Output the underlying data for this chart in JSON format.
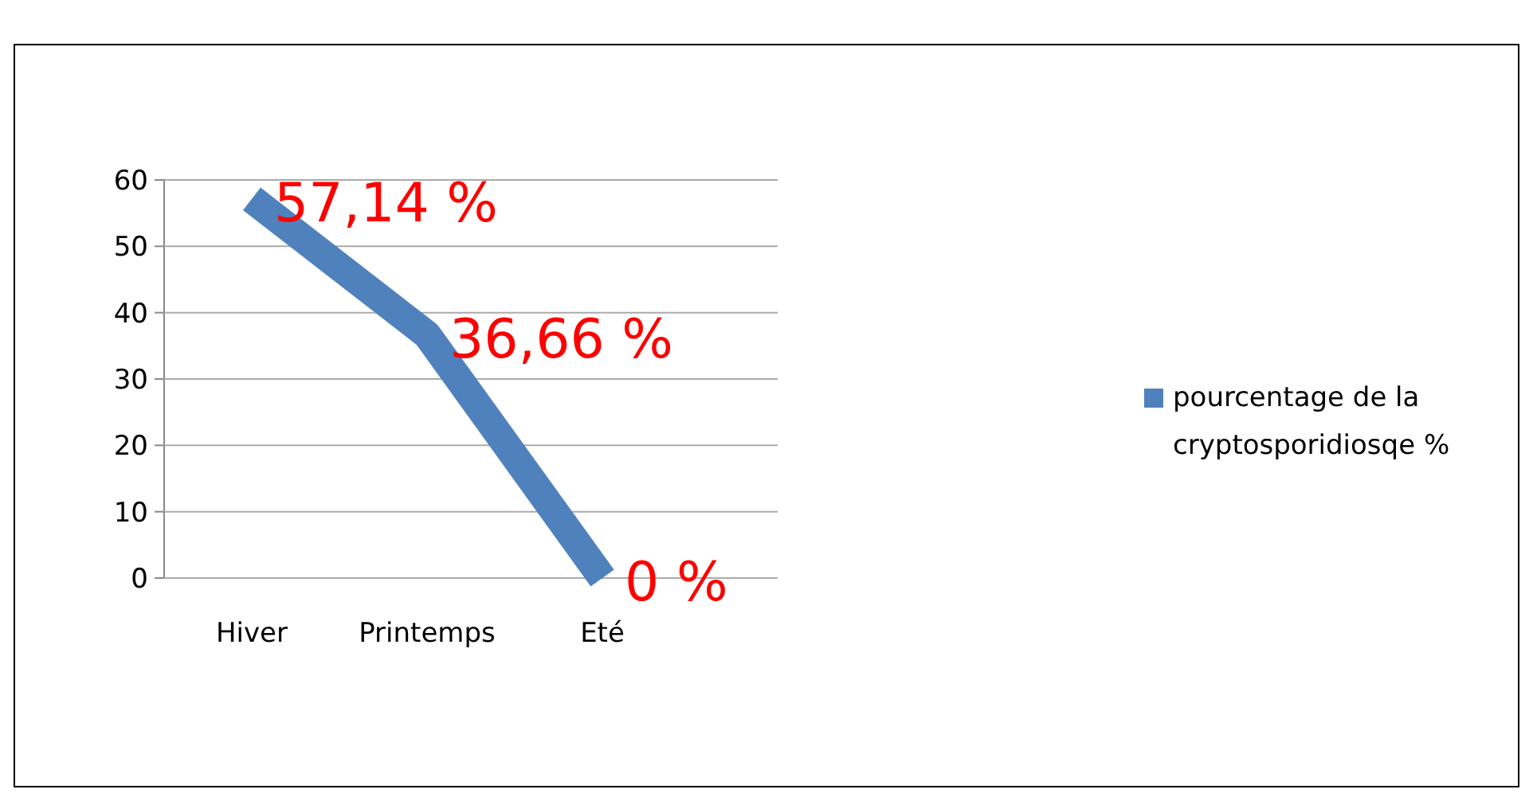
{
  "chart_data": {
    "type": "line",
    "categories": [
      "Hiver",
      "Printemps",
      "Eté"
    ],
    "series": [
      {
        "name": "pourcentage de la cryptosporidiosqe %",
        "color": "#4f81bd",
        "values": [
          57.14,
          36.66,
          0
        ],
        "value_labels": [
          "57,14 %",
          "36,66 %",
          "0 %"
        ]
      }
    ],
    "ylim": [
      0,
      60
    ],
    "yticks": [
      0,
      10,
      20,
      30,
      40,
      50,
      60
    ],
    "grid": "y",
    "legend": "right",
    "marker": "none"
  }
}
